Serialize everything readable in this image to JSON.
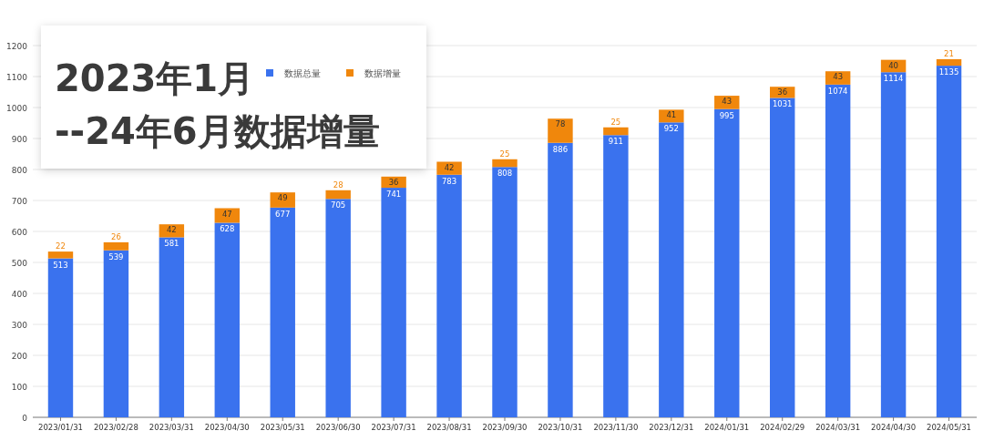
{
  "chart_data": {
    "type": "bar",
    "title": "2023年1月\n--24年6月数据增量",
    "categories": [
      "2023/01/31",
      "2023/02/28",
      "2023/03/31",
      "2023/04/30",
      "2023/05/31",
      "2023/06/30",
      "2023/07/31",
      "2023/08/31",
      "2023/09/30",
      "2023/10/31",
      "2023/11/30",
      "2023/12/31",
      "2024/01/31",
      "2024/02/29",
      "2024/03/31",
      "2024/04/30",
      "2024/05/31"
    ],
    "series": [
      {
        "name": "数据总量",
        "color": "#3a72ee",
        "values": [
          513,
          539,
          581,
          628,
          677,
          705,
          741,
          783,
          808,
          886,
          911,
          952,
          995,
          1031,
          1074,
          1114,
          1135
        ]
      },
      {
        "name": "数据增量",
        "color": "#f0870c",
        "values": [
          22,
          26,
          42,
          47,
          49,
          28,
          36,
          42,
          25,
          78,
          25,
          41,
          43,
          36,
          43,
          40,
          21
        ]
      }
    ],
    "stacked": true,
    "data_labels": true,
    "ylim": [
      0,
      1200
    ],
    "yticks": [
      0,
      100,
      200,
      300,
      400,
      500,
      600,
      700,
      800,
      900,
      1000,
      1100,
      1200
    ],
    "grid": "y",
    "legend": "top left"
  }
}
